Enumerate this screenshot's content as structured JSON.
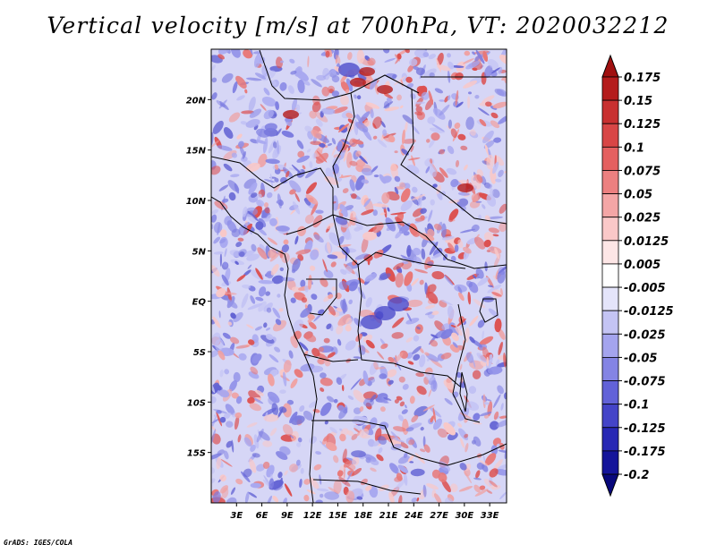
{
  "title": "Vertical velocity [m/s] at 700hPa, VT: 2020032212",
  "footer": "GrADS: IGES/COLA",
  "map": {
    "lat_labels": [
      "20N",
      "15N",
      "10N",
      "5N",
      "EQ",
      "5S",
      "10S",
      "15S"
    ],
    "lat_values": [
      20,
      15,
      10,
      5,
      0,
      -5,
      -10,
      -15
    ],
    "lon_labels": [
      "3E",
      "6E",
      "9E",
      "12E",
      "15E",
      "18E",
      "21E",
      "24E",
      "27E",
      "30E",
      "33E"
    ],
    "lon_values": [
      3,
      6,
      9,
      12,
      15,
      18,
      21,
      24,
      27,
      30,
      33
    ],
    "lon_range": [
      0,
      35
    ],
    "lat_range": [
      -20,
      25
    ]
  },
  "colorbar": {
    "labels": [
      "0.175",
      "0.15",
      "0.125",
      "0.1",
      "0.075",
      "0.05",
      "0.025",
      "0.0125",
      "0.005",
      "-0.005",
      "-0.0125",
      "-0.025",
      "-0.05",
      "-0.075",
      "-0.1",
      "-0.125",
      "-0.175",
      "-0.2"
    ],
    "colors": [
      "#a01010",
      "#b41c1c",
      "#c83030",
      "#d84646",
      "#e46060",
      "#ec8080",
      "#f4a6a6",
      "#fac8c8",
      "#fde6e6",
      "#ffffff",
      "#e4e4fa",
      "#c4c4f4",
      "#a4a4ee",
      "#8484e4",
      "#6262d8",
      "#4444c8",
      "#2828b4",
      "#14149a",
      "#08087c"
    ]
  },
  "field_colors": {
    "blue": [
      "#a8a8f0",
      "#9090e8",
      "#7c7ce0",
      "#6464d4",
      "#c0c0f4"
    ],
    "red": [
      "#f0a0a0",
      "#e87878",
      "#dc5050",
      "#f8c8c8"
    ]
  }
}
